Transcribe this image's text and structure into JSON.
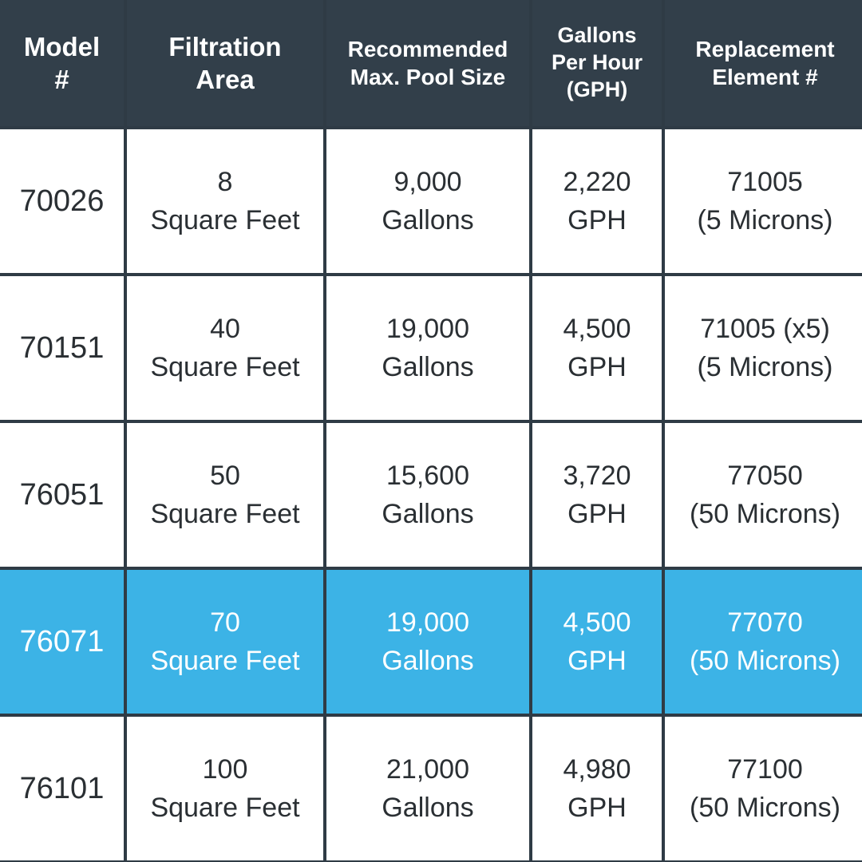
{
  "colors": {
    "header_bg": "#323f4a",
    "highlight_bg": "#3cb3e6",
    "cell_bg": "#ffffff",
    "grid": "#2f3b45"
  },
  "header": {
    "model": [
      "Model",
      "#"
    ],
    "area": [
      "Filtration",
      "Area"
    ],
    "pool": [
      "Recommended",
      "Max. Pool Size"
    ],
    "gph": [
      "Gallons",
      "Per Hour",
      "(GPH)"
    ],
    "element": [
      "Replacement",
      "Element #"
    ]
  },
  "rows": [
    {
      "model": "70026",
      "area": [
        "8",
        "Square Feet"
      ],
      "pool": [
        "9,000",
        "Gallons"
      ],
      "gph": [
        "2,220",
        "GPH"
      ],
      "element": [
        "71005",
        "(5 Microns)"
      ],
      "highlighted": false
    },
    {
      "model": "70151",
      "area": [
        "40",
        "Square Feet"
      ],
      "pool": [
        "19,000",
        "Gallons"
      ],
      "gph": [
        "4,500",
        "GPH"
      ],
      "element": [
        "71005 (x5)",
        "(5 Microns)"
      ],
      "highlighted": false
    },
    {
      "model": "76051",
      "area": [
        "50",
        "Square Feet"
      ],
      "pool": [
        "15,600",
        "Gallons"
      ],
      "gph": [
        "3,720",
        "GPH"
      ],
      "element": [
        "77050",
        "(50 Microns)"
      ],
      "highlighted": false
    },
    {
      "model": "76071",
      "area": [
        "70",
        "Square Feet"
      ],
      "pool": [
        "19,000",
        "Gallons"
      ],
      "gph": [
        "4,500",
        "GPH"
      ],
      "element": [
        "77070",
        "(50 Microns)"
      ],
      "highlighted": true
    },
    {
      "model": "76101",
      "area": [
        "100",
        "Square Feet"
      ],
      "pool": [
        "21,000",
        "Gallons"
      ],
      "gph": [
        "4,980",
        "GPH"
      ],
      "element": [
        "77100",
        "(50 Microns)"
      ],
      "highlighted": false
    }
  ]
}
